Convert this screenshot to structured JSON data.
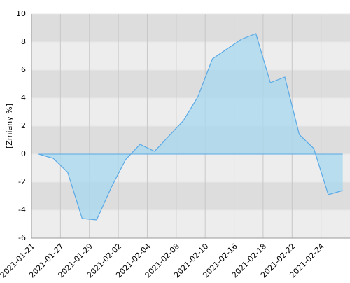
{
  "chart_data": {
    "type": "area",
    "y_label": "[Zmiany %]",
    "categories": [
      "2021-01-21",
      null,
      "2021-01-27",
      null,
      "2021-01-29",
      null,
      "2021-02-02",
      null,
      "2021-02-04",
      null,
      "2021-02-08",
      null,
      "2021-02-10",
      null,
      "2021-02-16",
      null,
      "2021-02-18",
      null,
      "2021-02-22",
      null,
      "2021-02-24",
      null
    ],
    "values": [
      0,
      -0.3,
      -1.3,
      -4.6,
      -4.7,
      -2.4,
      -0.4,
      0.7,
      0.2,
      1.3,
      2.4,
      4.1,
      6.8,
      7.5,
      8.2,
      8.6,
      5.1,
      5.5,
      1.4,
      0.4,
      -2.9,
      -2.6
    ],
    "color": "#5aa9e6",
    "fill": "#a9d8ee",
    "ylim": [
      -6,
      10
    ],
    "yticks": [
      -6,
      -4,
      -2,
      0,
      2,
      4,
      6,
      8,
      10
    ],
    "grid": true
  }
}
